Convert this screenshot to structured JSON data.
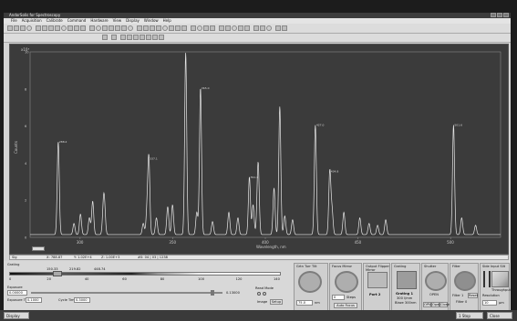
{
  "window": {
    "title": "AndorSolis for Spectroscopy"
  },
  "menu": [
    "File",
    "Acquisition",
    "Calibrate",
    "Command",
    "Hardware",
    "View",
    "Display",
    "Window",
    "Help"
  ],
  "chart_data": {
    "type": "line",
    "title": "",
    "xlabel": "Wavelength, nm",
    "ylabel": "Counts",
    "y_multiplier_label": "x10³",
    "x_ticks": [
      "300",
      "350",
      "400",
      "450",
      "500"
    ],
    "xlim": [
      273,
      527
    ],
    "ylim": [
      0,
      10
    ],
    "line_color": "#e8e8e8",
    "background": "#3b3b3b",
    "peaks": [
      {
        "x": 288.2,
        "y": 5.0,
        "label": "288.2"
      },
      {
        "x": 296.7,
        "y": 0.6
      },
      {
        "x": 300.2,
        "y": 1.1
      },
      {
        "x": 305.0,
        "y": 0.9
      },
      {
        "x": 306.8,
        "y": 1.8
      },
      {
        "x": 312.6,
        "y": 1.4
      },
      {
        "x": 313.2,
        "y": 1.2
      },
      {
        "x": 334.1,
        "y": 0.6
      },
      {
        "x": 336.1,
        "y": 1.2
      },
      {
        "x": 337.1,
        "y": 4.1,
        "label": "337.1"
      },
      {
        "x": 341.2,
        "y": 0.9
      },
      {
        "x": 347.3,
        "y": 1.5
      },
      {
        "x": 349.9,
        "y": 1.6
      },
      {
        "x": 357.0,
        "y": 9.8
      },
      {
        "x": 363.0,
        "y": 1.2
      },
      {
        "x": 365.0,
        "y": 7.9,
        "label": "365.0"
      },
      {
        "x": 371.5,
        "y": 0.7
      },
      {
        "x": 380.3,
        "y": 1.2
      },
      {
        "x": 385.2,
        "y": 0.9
      },
      {
        "x": 391.4,
        "y": 3.1,
        "label": "391.4"
      },
      {
        "x": 393.4,
        "y": 1.6
      },
      {
        "x": 395.7,
        "y": 1.0
      },
      {
        "x": 396.2,
        "y": 3.2
      },
      {
        "x": 404.7,
        "y": 2.5
      },
      {
        "x": 407.8,
        "y": 6.9
      },
      {
        "x": 410.5,
        "y": 1.0
      },
      {
        "x": 414.7,
        "y": 0.8
      },
      {
        "x": 427.0,
        "y": 5.9,
        "label": "427.0"
      },
      {
        "x": 434.8,
        "y": 3.4,
        "label": "434.8"
      },
      {
        "x": 436.0,
        "y": 1.3
      },
      {
        "x": 442.4,
        "y": 1.2
      },
      {
        "x": 451.0,
        "y": 0.9
      },
      {
        "x": 456.0,
        "y": 0.6
      },
      {
        "x": 460.6,
        "y": 0.5
      },
      {
        "x": 465.0,
        "y": 0.8
      },
      {
        "x": 501.6,
        "y": 5.9,
        "label": "501.6"
      },
      {
        "x": 506.0,
        "y": 0.9
      },
      {
        "x": 513.5,
        "y": 0.5
      }
    ],
    "y_ticks": [
      "0",
      "2",
      "4",
      "6",
      "8",
      "10"
    ]
  },
  "status": {
    "mode": "Sig",
    "x": "X: 788.87",
    "y": "Y: 1.02E+4",
    "z": "Z: 1.00E+3",
    "info": "#0: 04 | 03 | 1238"
  },
  "slider": {
    "label": "Grating",
    "ticks": [
      "0",
      "20",
      "40",
      "60",
      "80",
      "100",
      "120",
      "140"
    ],
    "values": [
      "150.33",
      "219.82",
      "448.74"
    ]
  },
  "exposure": {
    "label": "Exposure",
    "value": "0.00000",
    "exposure_time_label": "Exposure Time",
    "exposure_time_value": "0.1000",
    "cycle_time_label": "Cycle Time",
    "cycle_time_value": "0.3000",
    "right_value": "0.13000"
  },
  "readmode": {
    "label": "Read Mode",
    "image": "Image",
    "setup": "Setup"
  },
  "panels": {
    "turret": {
      "title": "Grtn Turr Tilt",
      "value": "Dens",
      "field": "75.0",
      "unit": "nm"
    },
    "focus": {
      "title": "Focus Mirror",
      "field": "0",
      "unit": "Steps",
      "button": "Auto Focus"
    },
    "output": {
      "title": "Output Flipper Mirror",
      "label": "Port 2"
    },
    "grating": {
      "title": "Grating",
      "label": "Grating 1",
      "line1": "300 l/mm",
      "line2": "Blaze 300nm"
    },
    "shutter": {
      "title": "Shutter",
      "state": "OPEN",
      "buttons": [
        "OPN",
        "Open",
        "Close"
      ]
    },
    "filter": {
      "title": "Filter",
      "label": "Filter 1",
      "reset": "Reset",
      "value": "Filter 0"
    },
    "slit": {
      "title": "Side Input Slit",
      "throughput": "Throughput",
      "resolution": "Resolution",
      "value": "10",
      "unit": "µm"
    }
  },
  "taskbar": {
    "left": "Display",
    "right": "1 Stop",
    "close": "Close"
  }
}
